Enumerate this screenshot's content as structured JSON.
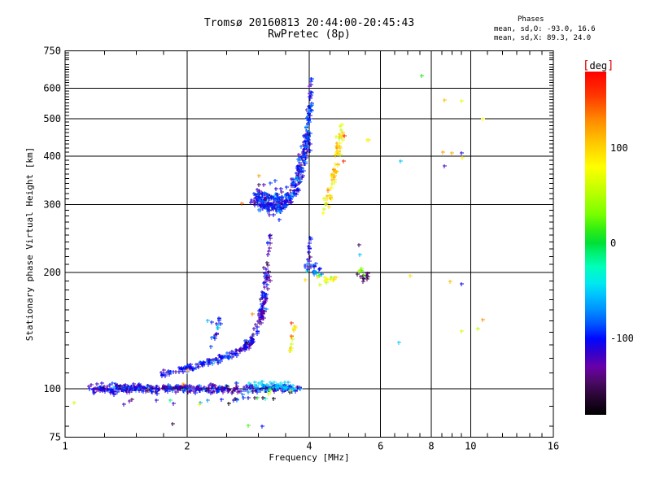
{
  "chart_data": {
    "type": "scatter",
    "title": "Tromsø 20160813 20:44:00-20:45:43",
    "subtitle": "RwPretec (8p)",
    "stats": {
      "heading": "Phases",
      "line_o": "mean, sd,O: -93.0, 16.6",
      "line_x": "mean, sd,X:  89.3, 24.0"
    },
    "xlabel": "Frequency [MHz]",
    "ylabel": "Stationary phase Virtual Height [km]",
    "x_scale": "log",
    "y_scale": "log",
    "xlim": [
      1,
      16
    ],
    "ylim": [
      75,
      750
    ],
    "x_major_ticks": [
      1,
      2,
      4,
      6,
      8,
      10,
      16
    ],
    "x_minor_ticks": [
      1.25,
      1.5,
      1.75,
      2.5,
      3,
      3.5,
      4.5,
      5,
      5.5,
      6.5,
      7,
      7.5,
      8.5,
      9,
      9.5,
      11,
      12,
      13,
      14,
      15
    ],
    "y_major_ticks": [
      75,
      100,
      200,
      300,
      400,
      500,
      600,
      750
    ],
    "y_minor_step": 10,
    "x_gridlines": [
      2,
      4,
      6,
      8,
      10
    ],
    "y_gridlines": [
      100,
      200,
      300,
      400,
      500,
      600
    ],
    "grid": true,
    "legend_position": "right-colorbar",
    "colorbar": {
      "bracket_left": "[",
      "label": "deg",
      "bracket_right": "]",
      "min": -180,
      "max": 180,
      "ticks": [
        100,
        0,
        -100
      ],
      "bracket_color": "#dd0000"
    },
    "colormap": [
      [
        -180,
        "#000000"
      ],
      [
        -160,
        "#2a0636"
      ],
      [
        -145,
        "#4b0a66"
      ],
      [
        -130,
        "#6a00a8"
      ],
      [
        -115,
        "#3300cc"
      ],
      [
        -100,
        "#0008ff"
      ],
      [
        -85,
        "#0055ff"
      ],
      [
        -70,
        "#0090ff"
      ],
      [
        -55,
        "#00c0ff"
      ],
      [
        -42,
        "#00e8f0"
      ],
      [
        -25,
        "#00ffbb"
      ],
      [
        -10,
        "#00f070"
      ],
      [
        0,
        "#00e038"
      ],
      [
        15,
        "#33ee11"
      ],
      [
        30,
        "#77ff00"
      ],
      [
        55,
        "#c0ff00"
      ],
      [
        80,
        "#ffff00"
      ],
      [
        105,
        "#ffc800"
      ],
      [
        130,
        "#ff8800"
      ],
      [
        155,
        "#ff3600"
      ],
      [
        180,
        "#ff0000"
      ]
    ],
    "marker": "plus",
    "clusters": [
      {
        "name": "e-band-100km",
        "n": 340,
        "path": [
          [
            1.15,
            100
          ],
          [
            3.85,
            100
          ]
        ],
        "x_jitter": 2.0,
        "y_jitter": 2.5,
        "phase_mean": -112,
        "phase_sd": 25
      },
      {
        "name": "e-band-left-dense",
        "n": 60,
        "path": [
          [
            1.2,
            100
          ],
          [
            1.55,
            101
          ]
        ],
        "x_jitter": 2.0,
        "y_jitter": 2.5,
        "phase_mean": -110,
        "phase_sd": 20
      },
      {
        "name": "e-band-cyan",
        "n": 55,
        "path": [
          [
            2.85,
            102
          ],
          [
            3.65,
            101
          ]
        ],
        "x_jitter": 2.0,
        "y_jitter": 2.5,
        "phase_mean": -55,
        "phase_sd": 18
      },
      {
        "name": "e-band-below",
        "n": 20,
        "path": [
          [
            1.35,
            93
          ],
          [
            3.3,
            94
          ]
        ],
        "x_jitter": 3.0,
        "y_jitter": 3.0,
        "phase_mean": -100,
        "phase_sd": 45
      },
      {
        "name": "slant-trace",
        "n": 120,
        "path": [
          [
            1.72,
            109
          ],
          [
            2.2,
            116
          ],
          [
            2.6,
            123
          ],
          [
            2.82,
            129
          ]
        ],
        "x_jitter": 1.5,
        "y_jitter": 2.0,
        "phase_mean": -102,
        "phase_sd": 15
      },
      {
        "name": "branch-2p35",
        "n": 16,
        "path": [
          [
            2.28,
            128
          ],
          [
            2.34,
            137
          ],
          [
            2.4,
            147
          ],
          [
            2.42,
            152
          ]
        ],
        "x_jitter": 1.5,
        "y_jitter": 2.0,
        "phase_mean": -95,
        "phase_sd": 25
      },
      {
        "name": "cusp-rise",
        "n": 95,
        "path": [
          [
            2.82,
            129
          ],
          [
            2.98,
            143
          ],
          [
            3.06,
            160
          ],
          [
            3.12,
            182
          ],
          [
            3.16,
            200
          ]
        ],
        "x_jitter": 2.0,
        "y_jitter": 3.0,
        "phase_mean": -118,
        "phase_sd": 22
      },
      {
        "name": "cusp-top-sparse",
        "n": 13,
        "path": [
          [
            3.13,
            205
          ],
          [
            3.16,
            228
          ],
          [
            3.2,
            252
          ]
        ],
        "x_jitter": 1.5,
        "y_jitter": 3.0,
        "phase_mean": -128,
        "phase_sd": 18
      },
      {
        "name": "f-region-blob",
        "n": 210,
        "path": [
          [
            2.93,
            316
          ],
          [
            3.08,
            306
          ],
          [
            3.25,
            301
          ],
          [
            3.42,
            303
          ],
          [
            3.52,
            309
          ]
        ],
        "x_jitter": 4.0,
        "y_jitter": 7.0,
        "phase_mean": -100,
        "phase_sd": 20
      },
      {
        "name": "f-region-rise",
        "n": 140,
        "path": [
          [
            3.52,
            312
          ],
          [
            3.66,
            332
          ],
          [
            3.78,
            360
          ],
          [
            3.87,
            393
          ],
          [
            3.93,
            428
          ],
          [
            3.96,
            460
          ]
        ],
        "x_jitter": 2.5,
        "y_jitter": 7.0,
        "phase_mean": -98,
        "phase_sd": 18
      },
      {
        "name": "f-column-top",
        "n": 40,
        "path": [
          [
            3.96,
            465
          ],
          [
            4.0,
            510
          ],
          [
            4.02,
            560
          ],
          [
            4.04,
            612
          ]
        ],
        "x_jitter": 1.5,
        "y_jitter": 6.0,
        "phase_mean": -95,
        "phase_sd": 15
      },
      {
        "name": "x-mode-trace",
        "n": 62,
        "path": [
          [
            4.32,
            290
          ],
          [
            4.46,
            318
          ],
          [
            4.58,
            352
          ],
          [
            4.68,
            395
          ],
          [
            4.75,
            440
          ],
          [
            4.8,
            480
          ]
        ],
        "x_jitter": 2.0,
        "y_jitter": 6.0,
        "phase_mean": 95,
        "phase_sd": 25
      },
      {
        "name": "cluster-200km-blue",
        "n": 22,
        "path": [
          [
            3.88,
            206
          ],
          [
            4.1,
            204
          ],
          [
            4.35,
            201
          ]
        ],
        "x_jitter": 3.0,
        "y_jitter": 4.0,
        "phase_mean": -88,
        "phase_sd": 28
      },
      {
        "name": "cluster-200km-yellow",
        "n": 15,
        "path": [
          [
            4.05,
            192
          ],
          [
            4.3,
            190
          ],
          [
            4.6,
            193
          ]
        ],
        "x_jitter": 3.0,
        "y_jitter": 3.0,
        "phase_mean": 78,
        "phase_sd": 22
      },
      {
        "name": "cluster-200km-purple",
        "n": 11,
        "path": [
          [
            5.28,
            196
          ],
          [
            5.6,
            193
          ]
        ],
        "x_jitter": 2.0,
        "y_jitter": 3.0,
        "phase_mean": -148,
        "phase_sd": 12
      },
      {
        "name": "cluster-200km-green",
        "n": 6,
        "path": [
          [
            5.3,
            203
          ],
          [
            5.5,
            200
          ]
        ],
        "x_jitter": 2.0,
        "y_jitter": 3.0,
        "phase_mean": 45,
        "phase_sd": 18
      },
      {
        "name": "spur-4mhz",
        "n": 10,
        "path": [
          [
            3.97,
            208
          ],
          [
            4.0,
            226
          ],
          [
            4.02,
            242
          ]
        ],
        "x_jitter": 1.0,
        "y_jitter": 4.0,
        "phase_mean": -105,
        "phase_sd": 15
      },
      {
        "name": "ex-streak-3p6",
        "n": 13,
        "path": [
          [
            3.57,
            124
          ],
          [
            3.62,
            132
          ],
          [
            3.66,
            140
          ],
          [
            3.7,
            147
          ]
        ],
        "x_jitter": 1.0,
        "y_jitter": 2.0,
        "phase_mean": 95,
        "phase_sd": 30
      }
    ],
    "outliers": [
      [
        2.73,
        302,
        140
      ],
      [
        3.0,
        356,
        120
      ],
      [
        2.9,
        156,
        130
      ],
      [
        7.56,
        645,
        10
      ],
      [
        8.6,
        560,
        110
      ],
      [
        9.5,
        555,
        70
      ],
      [
        10.7,
        500,
        85
      ],
      [
        5.55,
        440,
        85
      ],
      [
        5.6,
        441,
        90
      ],
      [
        8.55,
        410,
        120
      ],
      [
        9.0,
        408,
        115
      ],
      [
        9.5,
        407,
        -110
      ],
      [
        9.55,
        397,
        85
      ],
      [
        6.7,
        389,
        -55
      ],
      [
        8.6,
        378,
        -120
      ],
      [
        5.3,
        236,
        -150
      ],
      [
        5.32,
        222,
        -55
      ],
      [
        7.1,
        196,
        95
      ],
      [
        8.9,
        190,
        110
      ],
      [
        9.5,
        187,
        -105
      ],
      [
        10.7,
        151,
        125
      ],
      [
        9.5,
        141,
        60
      ],
      [
        10.4,
        143,
        55
      ],
      [
        6.65,
        132,
        -50
      ],
      [
        1.05,
        92,
        60
      ],
      [
        2.14,
        91,
        80
      ],
      [
        1.46,
        94,
        -150
      ],
      [
        1.84,
        81,
        -155
      ],
      [
        2.83,
        80.5,
        20
      ],
      [
        1.95,
        103,
        120
      ],
      [
        2.0,
        112,
        130
      ],
      [
        4.87,
        452,
        170
      ],
      [
        4.86,
        389,
        165
      ],
      [
        3.62,
        148,
        160
      ],
      [
        2.24,
        150,
        -60
      ],
      [
        2.3,
        149,
        -95
      ],
      [
        4.05,
        635,
        -95
      ],
      [
        3.6,
        99,
        75
      ],
      [
        3.65,
        102,
        -50
      ],
      [
        3.17,
        97,
        60
      ],
      [
        3.2,
        99,
        45
      ],
      [
        2.43,
        94,
        -100
      ],
      [
        3.06,
        80,
        -100
      ]
    ]
  }
}
